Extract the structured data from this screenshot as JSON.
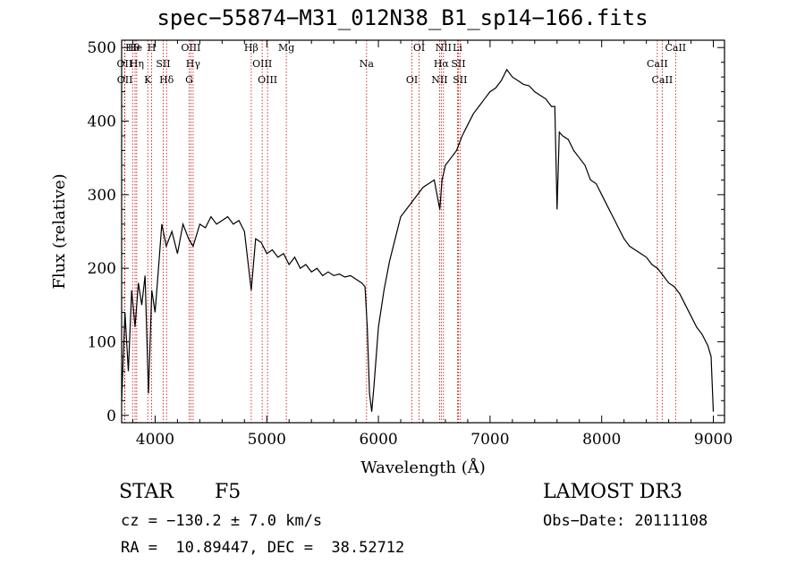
{
  "header": {
    "title": "spec−55874−M31_012N38_B1_sp14−166.fits"
  },
  "footer": {
    "class": "STAR",
    "subclass": "F5",
    "survey": "LAMOST DR3",
    "cz": "cz = −130.2 ± 7.0 km/s",
    "obs_date": "Obs−Date: 20111108",
    "coords": "RA =  10.89447, DEC =  38.52712"
  },
  "colors": {
    "line": "#000000",
    "marker": "#c00000",
    "axis": "#000000"
  },
  "chart_data": {
    "type": "line",
    "title": "spec−55874−M31_012N38_B1_sp14−166.fits",
    "xlabel": "Wavelength (Å)",
    "ylabel": "Flux (relative)",
    "xlim": [
      3700,
      9100
    ],
    "ylim": [
      -10,
      510
    ],
    "xticks": [
      4000,
      5000,
      6000,
      7000,
      8000,
      9000
    ],
    "yticks": [
      0,
      100,
      200,
      300,
      400,
      500
    ],
    "grid": false,
    "series": [
      {
        "x": [
          3700,
          3730,
          3760,
          3790,
          3820,
          3850,
          3880,
          3910,
          3940,
          3970,
          4000,
          4030,
          4060,
          4100,
          4150,
          4200,
          4250,
          4300,
          4340,
          4400,
          4450,
          4500,
          4550,
          4600,
          4650,
          4700,
          4750,
          4800,
          4861,
          4900,
          4950,
          5000,
          5050,
          5100,
          5150,
          5200,
          5250,
          5300,
          5350,
          5400,
          5450,
          5500,
          5550,
          5600,
          5650,
          5700,
          5750,
          5800,
          5850,
          5880,
          5900,
          5920,
          5940,
          5960,
          6000,
          6050,
          6100,
          6150,
          6200,
          6250,
          6300,
          6350,
          6400,
          6450,
          6500,
          6550,
          6570,
          6600,
          6650,
          6700,
          6750,
          6800,
          6850,
          6900,
          6950,
          7000,
          7050,
          7100,
          7150,
          7200,
          7250,
          7300,
          7350,
          7400,
          7450,
          7500,
          7550,
          7580,
          7600,
          7620,
          7650,
          7700,
          7750,
          7800,
          7850,
          7900,
          7950,
          8000,
          8050,
          8100,
          8150,
          8200,
          8250,
          8300,
          8350,
          8400,
          8450,
          8500,
          8550,
          8600,
          8650,
          8700,
          8750,
          8800,
          8850,
          8900,
          8950,
          8980,
          9000
        ],
        "y": [
          20,
          140,
          60,
          170,
          120,
          180,
          150,
          190,
          30,
          170,
          140,
          200,
          260,
          230,
          250,
          220,
          260,
          240,
          230,
          260,
          255,
          270,
          260,
          265,
          270,
          260,
          265,
          250,
          170,
          240,
          235,
          220,
          225,
          215,
          220,
          205,
          215,
          200,
          205,
          195,
          200,
          190,
          195,
          190,
          192,
          188,
          190,
          185,
          180,
          175,
          120,
          30,
          5,
          40,
          120,
          170,
          210,
          240,
          270,
          280,
          290,
          300,
          310,
          315,
          320,
          280,
          320,
          340,
          350,
          360,
          380,
          395,
          410,
          420,
          430,
          440,
          445,
          455,
          470,
          460,
          455,
          450,
          448,
          440,
          435,
          430,
          420,
          420,
          280,
          385,
          380,
          375,
          360,
          350,
          340,
          320,
          315,
          300,
          285,
          270,
          255,
          240,
          230,
          225,
          220,
          215,
          205,
          200,
          190,
          180,
          175,
          165,
          150,
          135,
          120,
          110,
          95,
          80,
          5
        ]
      }
    ],
    "lines": [
      {
        "label": "Hθ",
        "wavelength": 3798
      },
      {
        "label": "OII",
        "wavelength": 3727
      },
      {
        "label": "OII",
        "wavelength": 3729
      },
      {
        "label": "He",
        "wavelength": 3820
      },
      {
        "label": "Hη",
        "wavelength": 3835
      },
      {
        "label": "K",
        "wavelength": 3934
      },
      {
        "label": "H",
        "wavelength": 3969
      },
      {
        "label": "SII",
        "wavelength": 4072
      },
      {
        "label": "Hδ",
        "wavelength": 4102
      },
      {
        "label": "OIII",
        "wavelength": 4320
      },
      {
        "label": "Hγ",
        "wavelength": 4340
      },
      {
        "label": "G",
        "wavelength": 4305
      },
      {
        "label": "Hβ",
        "wavelength": 4861
      },
      {
        "label": "OIII",
        "wavelength": 4959
      },
      {
        "label": "OIII",
        "wavelength": 5007
      },
      {
        "label": "Mg",
        "wavelength": 5175
      },
      {
        "label": "Na",
        "wavelength": 5894
      },
      {
        "label": "OI",
        "wavelength": 6300
      },
      {
        "label": "OI",
        "wavelength": 6364
      },
      {
        "label": "Hα",
        "wavelength": 6563
      },
      {
        "label": "NII",
        "wavelength": 6548
      },
      {
        "label": "NII",
        "wavelength": 6583
      },
      {
        "label": "SII",
        "wavelength": 6716
      },
      {
        "label": "SII",
        "wavelength": 6731
      },
      {
        "label": "Li",
        "wavelength": 6708
      },
      {
        "label": "CaII",
        "wavelength": 8498
      },
      {
        "label": "CaII",
        "wavelength": 8542
      },
      {
        "label": "CaII",
        "wavelength": 8662
      }
    ]
  }
}
